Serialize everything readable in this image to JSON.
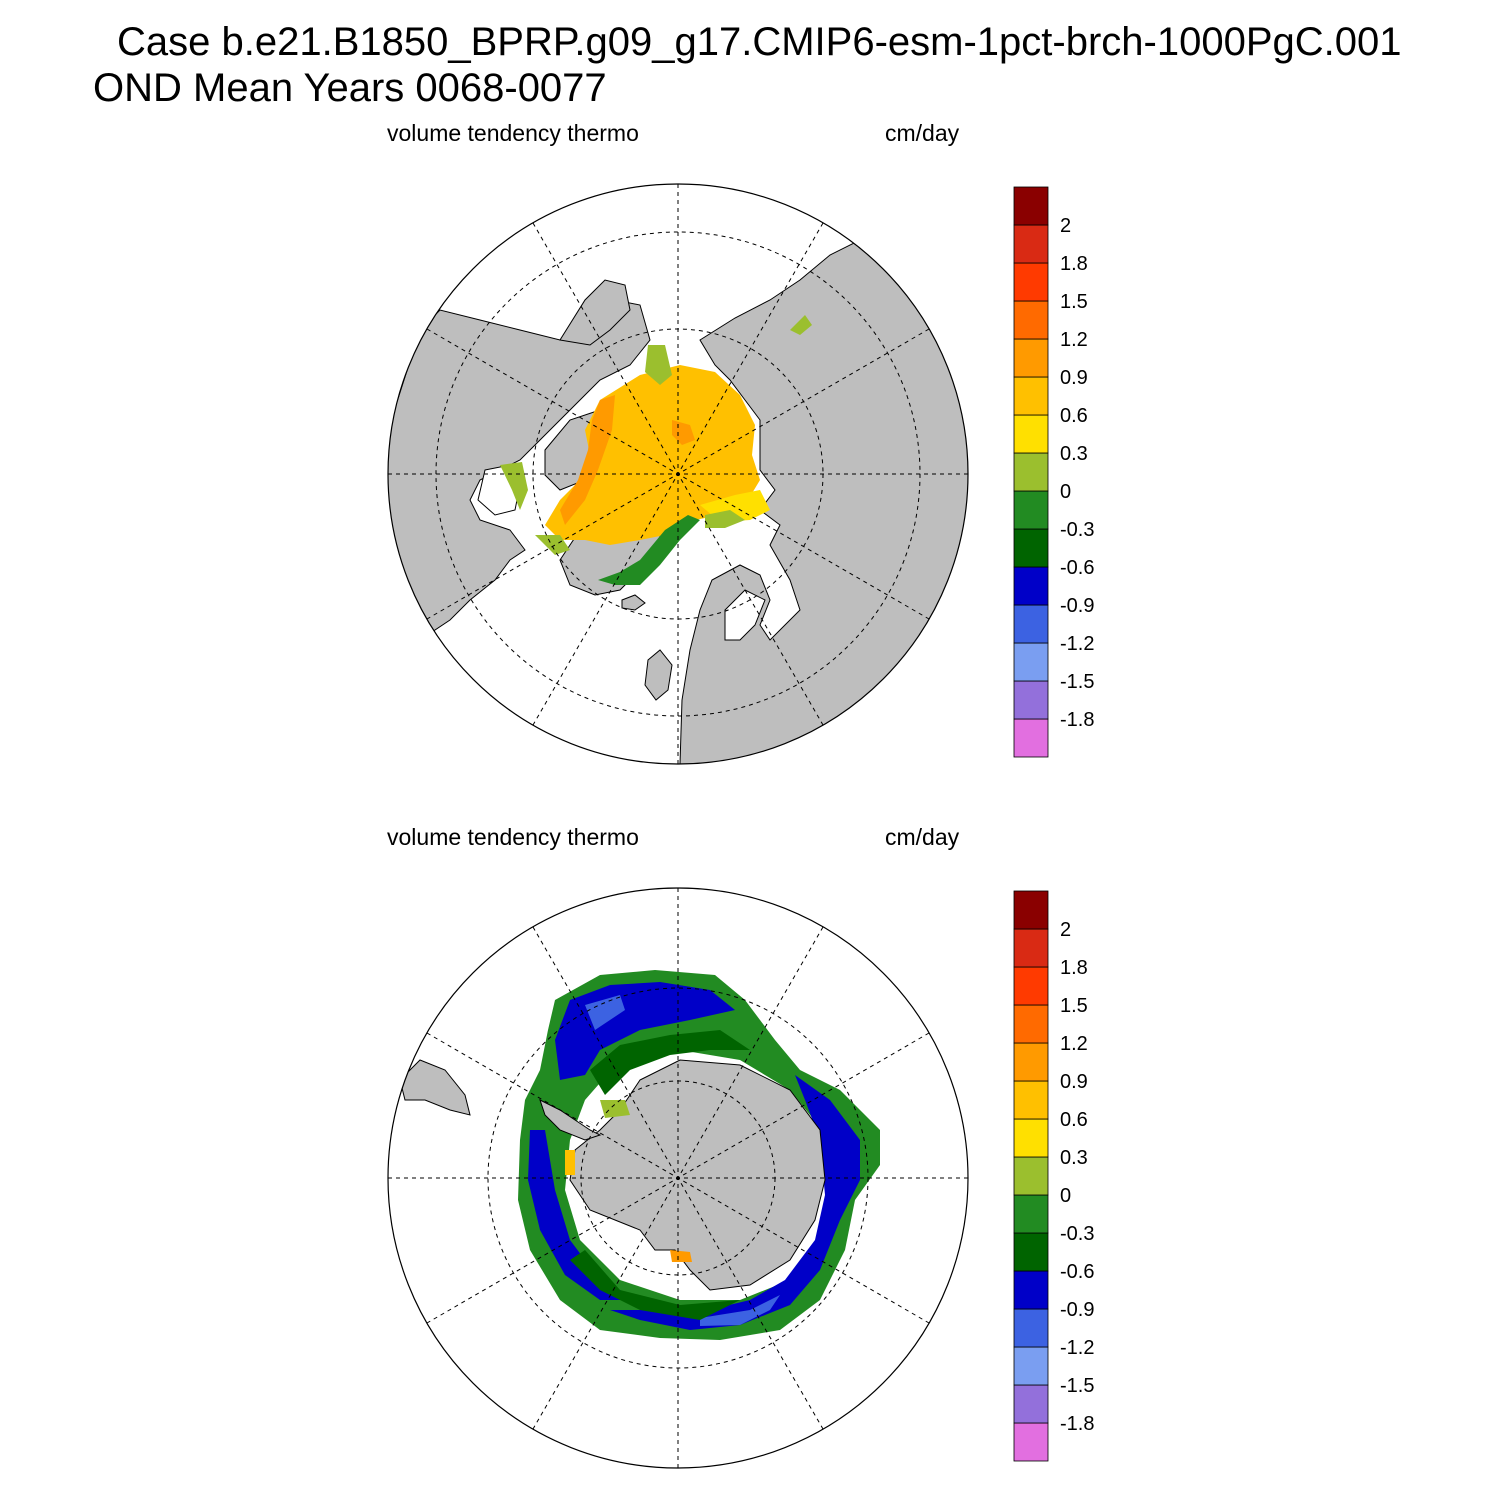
{
  "title": {
    "line1": "Case b.e21.B1850_BPRP.g09_g17.CMIP6-esm-1pct-brch-1000PgC.001",
    "line2": "OND Mean   Years 0068-0077"
  },
  "panels": [
    {
      "hemisphere": "north",
      "variable_label": "volume tendency thermo",
      "units_label": "cm/day"
    },
    {
      "hemisphere": "south",
      "variable_label": "volume tendency thermo",
      "units_label": "cm/day"
    }
  ],
  "colorbar": {
    "colors": [
      "#e26fe0",
      "#9370db",
      "#7a9ef1",
      "#3c62e2",
      "#0000c8",
      "#006400",
      "#228b22",
      "#9bbf2e",
      "#ffe000",
      "#ffc000",
      "#ff9a00",
      "#ff6a00",
      "#ff3a00",
      "#d92a14",
      "#8a0000"
    ],
    "tick_labels": [
      "-1.8",
      "-1.5",
      "-1.2",
      "-0.9",
      "-0.6",
      "-0.3",
      "0",
      "0.3",
      "0.6",
      "0.9",
      "1.2",
      "1.5",
      "1.8",
      "2"
    ]
  },
  "map_colors": {
    "land": "#bebebe",
    "ocean": "#ffffff",
    "grid": "#000000"
  }
}
